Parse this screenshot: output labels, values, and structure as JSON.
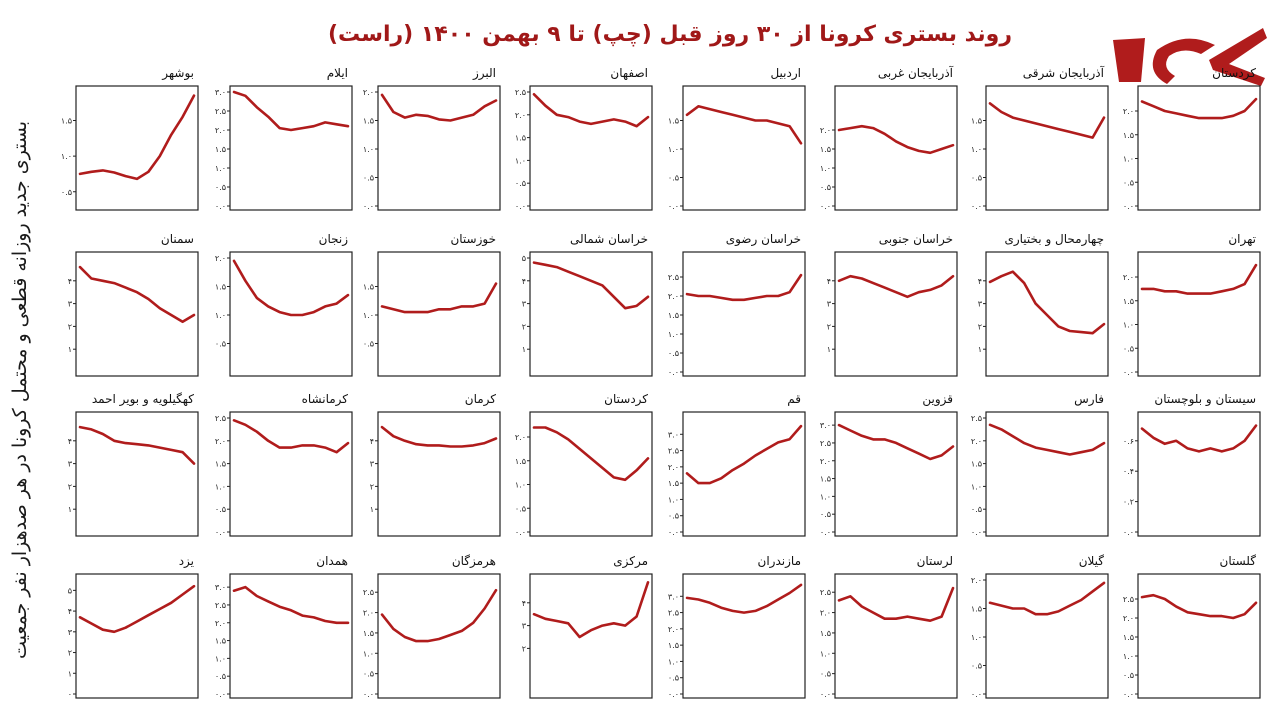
{
  "title": "روند بستری کرونا از ۳۰ روز قبل (چپ) تا ۹ بهمن ۱۴۰۰ (راست)",
  "y_axis_label": "بستری جدید روزانه قطعی و محتمل کرونا در هر صدهزار نفر جمعیت",
  "colors": {
    "line": "#b01c1c",
    "title": "#a01818",
    "frame": "#222222",
    "logo": "#b01c1c"
  },
  "chart_data": [
    {
      "type": "line",
      "title": "بوشهر",
      "ylim": [
        0.3,
        1.9
      ],
      "yticks": [
        0.5,
        1.0,
        1.5
      ],
      "y": [
        0.75,
        0.78,
        0.8,
        0.77,
        0.72,
        0.68,
        0.78,
        1.0,
        1.3,
        1.55,
        1.85
      ]
    },
    {
      "type": "line",
      "title": "ایلام",
      "ylim": [
        0.0,
        3.0
      ],
      "yticks": [
        0.0,
        0.5,
        1.0,
        1.5,
        2.0,
        2.5,
        3.0
      ],
      "y": [
        3.0,
        2.9,
        2.6,
        2.35,
        2.05,
        2.0,
        2.05,
        2.1,
        2.2,
        2.15,
        2.1
      ]
    },
    {
      "type": "line",
      "title": "البرز",
      "ylim": [
        0.0,
        2.0
      ],
      "yticks": [
        0.0,
        0.5,
        1.0,
        1.5,
        2.0
      ],
      "y": [
        1.95,
        1.65,
        1.55,
        1.6,
        1.58,
        1.52,
        1.5,
        1.55,
        1.6,
        1.75,
        1.85
      ]
    },
    {
      "type": "line",
      "title": "اصفهان",
      "ylim": [
        0.0,
        2.5
      ],
      "yticks": [
        0.0,
        0.5,
        1.0,
        1.5,
        2.0,
        2.5
      ],
      "y": [
        2.45,
        2.2,
        2.0,
        1.95,
        1.85,
        1.8,
        1.85,
        1.9,
        1.85,
        1.75,
        1.95
      ]
    },
    {
      "type": "line",
      "title": "اردبیل",
      "ylim": [
        0.0,
        2.0
      ],
      "yticks": [
        0.0,
        0.5,
        1.0,
        1.5
      ],
      "y": [
        1.6,
        1.75,
        1.7,
        1.65,
        1.6,
        1.55,
        1.5,
        1.5,
        1.45,
        1.4,
        1.1
      ]
    },
    {
      "type": "line",
      "title": "آذربایجان غربی",
      "ylim": [
        0.0,
        3.0
      ],
      "yticks": [
        0.0,
        0.5,
        1.0,
        1.5,
        2.0
      ],
      "y": [
        2.0,
        2.05,
        2.1,
        2.05,
        1.9,
        1.7,
        1.55,
        1.45,
        1.4,
        1.5,
        1.6
      ]
    },
    {
      "type": "line",
      "title": "آذربایجان شرقی",
      "ylim": [
        0.0,
        2.0
      ],
      "yticks": [
        0.0,
        0.5,
        1.0,
        1.5
      ],
      "y": [
        1.8,
        1.65,
        1.55,
        1.5,
        1.45,
        1.4,
        1.35,
        1.3,
        1.25,
        1.2,
        1.55
      ]
    },
    {
      "type": "line",
      "title": "کردستان",
      "ylim": [
        0.0,
        2.4
      ],
      "yticks": [
        0.0,
        0.5,
        1.0,
        1.5,
        2.0
      ],
      "y": [
        2.2,
        2.1,
        2.0,
        1.95,
        1.9,
        1.85,
        1.85,
        1.85,
        1.9,
        2.0,
        2.25
      ]
    },
    {
      "type": "line",
      "title": "سمنان",
      "ylim": [
        0.0,
        5.0
      ],
      "yticks": [
        1,
        2,
        3,
        4
      ],
      "y": [
        4.6,
        4.1,
        4.0,
        3.9,
        3.7,
        3.5,
        3.2,
        2.8,
        2.5,
        2.2,
        2.5
      ]
    },
    {
      "type": "line",
      "title": "زنجان",
      "ylim": [
        0.0,
        2.0
      ],
      "yticks": [
        0.5,
        1.0,
        1.5,
        2.0
      ],
      "y": [
        1.95,
        1.6,
        1.3,
        1.15,
        1.05,
        1.0,
        1.0,
        1.05,
        1.15,
        1.2,
        1.35
      ]
    },
    {
      "type": "line",
      "title": "خوزستان",
      "ylim": [
        0.0,
        2.0
      ],
      "yticks": [
        0.5,
        1.0,
        1.5
      ],
      "y": [
        1.15,
        1.1,
        1.05,
        1.05,
        1.05,
        1.1,
        1.1,
        1.15,
        1.15,
        1.2,
        1.55
      ]
    },
    {
      "type": "line",
      "title": "خراسان شمالی",
      "ylim": [
        0.0,
        5.0
      ],
      "yticks": [
        1,
        2,
        3,
        4,
        5
      ],
      "y": [
        4.8,
        4.7,
        4.6,
        4.4,
        4.2,
        4.0,
        3.8,
        3.3,
        2.8,
        2.9,
        3.3
      ]
    },
    {
      "type": "line",
      "title": "خراسان رضوی",
      "ylim": [
        0.0,
        3.0
      ],
      "yticks": [
        0.0,
        0.5,
        1.0,
        1.5,
        2.0,
        2.5
      ],
      "y": [
        2.05,
        2.0,
        2.0,
        1.95,
        1.9,
        1.9,
        1.95,
        2.0,
        2.0,
        2.1,
        2.55
      ]
    },
    {
      "type": "line",
      "title": "خراسان جنوبی",
      "ylim": [
        0.0,
        5.0
      ],
      "yticks": [
        1,
        2,
        3,
        4
      ],
      "y": [
        4.0,
        4.2,
        4.1,
        3.9,
        3.7,
        3.5,
        3.3,
        3.5,
        3.6,
        3.8,
        4.2
      ]
    },
    {
      "type": "line",
      "title": "چهارمحال و بختیاری",
      "ylim": [
        0.0,
        5.0
      ],
      "yticks": [
        1,
        2,
        3,
        4
      ],
      "y": [
        3.95,
        4.2,
        4.4,
        3.9,
        3.0,
        2.5,
        2.0,
        1.8,
        1.75,
        1.7,
        2.1
      ]
    },
    {
      "type": "line",
      "title": "تهران",
      "ylim": [
        0.0,
        2.4
      ],
      "yticks": [
        0.0,
        0.5,
        1.0,
        1.5,
        2.0
      ],
      "y": [
        1.75,
        1.75,
        1.7,
        1.7,
        1.65,
        1.65,
        1.65,
        1.7,
        1.75,
        1.85,
        2.25
      ]
    },
    {
      "type": "line",
      "title": "کهگیلویه و بویر احمد",
      "ylim": [
        0.0,
        5.0
      ],
      "yticks": [
        1,
        2,
        3,
        4
      ],
      "y": [
        4.6,
        4.5,
        4.3,
        4.0,
        3.9,
        3.85,
        3.8,
        3.7,
        3.6,
        3.5,
        3.0
      ]
    },
    {
      "type": "line",
      "title": "کرمانشاه",
      "ylim": [
        0.0,
        2.5
      ],
      "yticks": [
        0.0,
        0.5,
        1.0,
        1.5,
        2.0,
        2.5
      ],
      "y": [
        2.45,
        2.35,
        2.2,
        2.0,
        1.85,
        1.85,
        1.9,
        1.9,
        1.85,
        1.75,
        1.95
      ]
    },
    {
      "type": "line",
      "title": "کرمان",
      "ylim": [
        0.0,
        5.0
      ],
      "yticks": [
        1,
        2,
        3,
        4
      ],
      "y": [
        4.6,
        4.2,
        4.0,
        3.85,
        3.8,
        3.8,
        3.75,
        3.75,
        3.8,
        3.9,
        4.1
      ]
    },
    {
      "type": "line",
      "title": "کردستان",
      "ylim": [
        0.0,
        2.4
      ],
      "yticks": [
        0.0,
        0.5,
        1.0,
        1.5,
        2.0
      ],
      "y": [
        2.2,
        2.2,
        2.1,
        1.95,
        1.75,
        1.55,
        1.35,
        1.15,
        1.1,
        1.3,
        1.55
      ]
    },
    {
      "type": "line",
      "title": "قم",
      "ylim": [
        0.0,
        3.5
      ],
      "yticks": [
        0.0,
        0.5,
        1.0,
        1.5,
        2.0,
        2.5,
        3.0
      ],
      "y": [
        1.8,
        1.5,
        1.5,
        1.65,
        1.9,
        2.1,
        2.35,
        2.55,
        2.75,
        2.85,
        3.25
      ]
    },
    {
      "type": "line",
      "title": "قزوین",
      "ylim": [
        0.0,
        3.2
      ],
      "yticks": [
        0.0,
        0.5,
        1.0,
        1.5,
        2.0,
        2.5,
        3.0
      ],
      "y": [
        3.0,
        2.85,
        2.7,
        2.6,
        2.6,
        2.5,
        2.35,
        2.2,
        2.05,
        2.15,
        2.4
      ]
    },
    {
      "type": "line",
      "title": "فارس",
      "ylim": [
        0.0,
        2.5
      ],
      "yticks": [
        0.0,
        0.5,
        1.0,
        1.5,
        2.0,
        2.5
      ],
      "y": [
        2.35,
        2.25,
        2.1,
        1.95,
        1.85,
        1.8,
        1.75,
        1.7,
        1.75,
        1.8,
        1.95
      ]
    },
    {
      "type": "line",
      "title": "سیستان و بلوچستان",
      "ylim": [
        0.0,
        0.75
      ],
      "yticks": [
        0.0,
        0.2,
        0.4,
        0.6
      ],
      "y": [
        0.68,
        0.62,
        0.58,
        0.6,
        0.55,
        0.53,
        0.55,
        0.53,
        0.55,
        0.6,
        0.7
      ]
    },
    {
      "type": "line",
      "title": "یزد",
      "ylim": [
        0.0,
        5.5
      ],
      "yticks": [
        0,
        1,
        2,
        3,
        4,
        5
      ],
      "y": [
        3.7,
        3.4,
        3.1,
        3.0,
        3.2,
        3.5,
        3.8,
        4.1,
        4.4,
        4.8,
        5.2
      ]
    },
    {
      "type": "line",
      "title": "همدان",
      "ylim": [
        0.0,
        3.2
      ],
      "yticks": [
        0.0,
        0.5,
        1.0,
        1.5,
        2.0,
        2.5,
        3.0
      ],
      "y": [
        2.9,
        3.0,
        2.75,
        2.6,
        2.45,
        2.35,
        2.2,
        2.15,
        2.05,
        2.0,
        2.0
      ]
    },
    {
      "type": "line",
      "title": "هرمزگان",
      "ylim": [
        0.0,
        2.8
      ],
      "yticks": [
        0.0,
        0.5,
        1.0,
        1.5,
        2.0,
        2.5
      ],
      "y": [
        1.95,
        1.6,
        1.4,
        1.3,
        1.3,
        1.35,
        1.45,
        1.55,
        1.75,
        2.1,
        2.55
      ]
    },
    {
      "type": "line",
      "title": "مرکزی",
      "ylim": [
        0.0,
        5.0
      ],
      "yticks": [
        2,
        3,
        4
      ],
      "y": [
        3.5,
        3.3,
        3.2,
        3.1,
        2.5,
        2.8,
        3.0,
        3.1,
        3.0,
        3.4,
        4.9
      ]
    },
    {
      "type": "line",
      "title": "مازندران",
      "ylim": [
        0.0,
        3.5
      ],
      "yticks": [
        0.0,
        0.5,
        1.0,
        1.5,
        2.0,
        2.5,
        3.0
      ],
      "y": [
        2.95,
        2.9,
        2.8,
        2.65,
        2.55,
        2.5,
        2.55,
        2.7,
        2.9,
        3.1,
        3.35
      ]
    },
    {
      "type": "line",
      "title": "لرستان",
      "ylim": [
        0.0,
        2.8
      ],
      "yticks": [
        0.0,
        0.5,
        1.0,
        1.5,
        2.0,
        2.5
      ],
      "y": [
        2.3,
        2.4,
        2.15,
        2.0,
        1.85,
        1.85,
        1.9,
        1.85,
        1.8,
        1.9,
        2.6
      ]
    },
    {
      "type": "line",
      "title": "گیلان",
      "ylim": [
        0.0,
        2.0
      ],
      "yticks": [
        0.0,
        0.5,
        1.0,
        1.5,
        2.0
      ],
      "y": [
        1.6,
        1.55,
        1.5,
        1.5,
        1.4,
        1.4,
        1.45,
        1.55,
        1.65,
        1.8,
        1.95
      ]
    },
    {
      "type": "line",
      "title": "گلستان",
      "ylim": [
        0.0,
        3.0
      ],
      "yticks": [
        0.0,
        0.5,
        1.0,
        1.5,
        2.0,
        2.5
      ],
      "y": [
        2.55,
        2.6,
        2.5,
        2.3,
        2.15,
        2.1,
        2.05,
        2.05,
        2.0,
        2.1,
        2.4
      ]
    }
  ]
}
